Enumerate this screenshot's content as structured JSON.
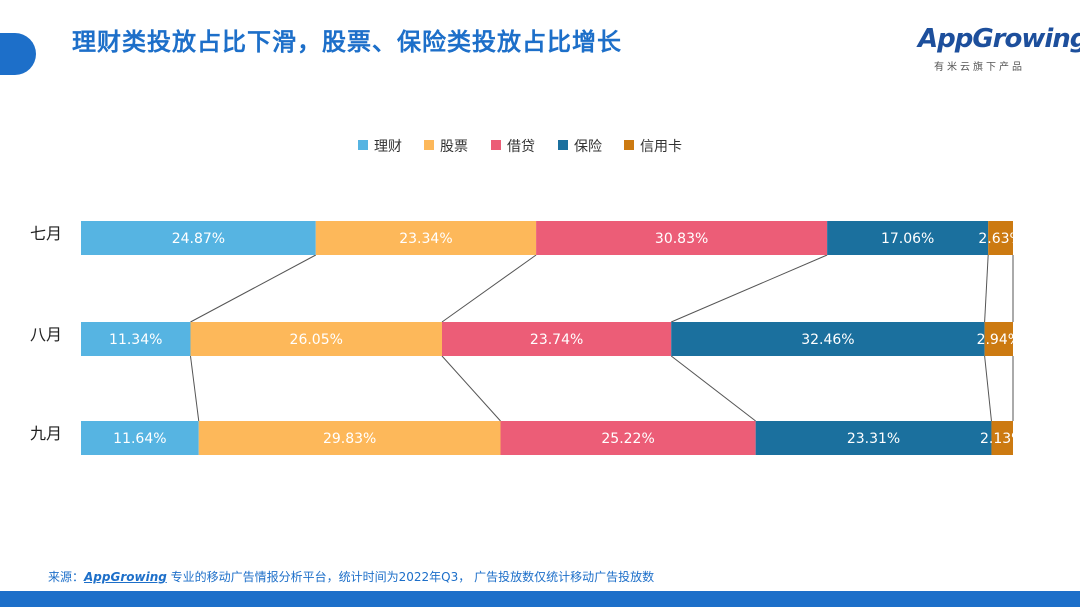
{
  "header": {
    "title": "理财类投放占比下滑，股票、保险类投放占比增长",
    "logo_text": "AppGrowing",
    "logo_sub": "有米云旗下产品"
  },
  "colors": {
    "accent": "#1d6fc9",
    "footer": "#1d6fc9"
  },
  "chart_data": {
    "type": "bar",
    "stacked": true,
    "percent_stacked": true,
    "orientation": "horizontal",
    "title": "",
    "categories": [
      "七月",
      "八月",
      "九月"
    ],
    "series": [
      {
        "name": "理财",
        "color": "#56b4e2",
        "values": [
          24.87,
          11.34,
          11.64
        ]
      },
      {
        "name": "股票",
        "color": "#fdb85a",
        "values": [
          23.34,
          26.05,
          29.83
        ]
      },
      {
        "name": "借贷",
        "color": "#ec5d77",
        "values": [
          30.83,
          23.74,
          25.22
        ]
      },
      {
        "name": "保险",
        "color": "#1b709e",
        "values": [
          17.06,
          32.46,
          23.31
        ]
      },
      {
        "name": "信用卡",
        "color": "#cc7a11",
        "values": [
          2.63,
          2.94,
          2.13
        ]
      }
    ],
    "value_format": "%",
    "legend_position": "top",
    "connector_lines": true,
    "grid": false
  },
  "footer": {
    "source_prefix": "来源：",
    "source_brand": "AppGrowing",
    "source_text": " 专业的移动广告情报分析平台，统计时间为2022年Q3， 广告投放数仅统计移动广告投放数"
  }
}
